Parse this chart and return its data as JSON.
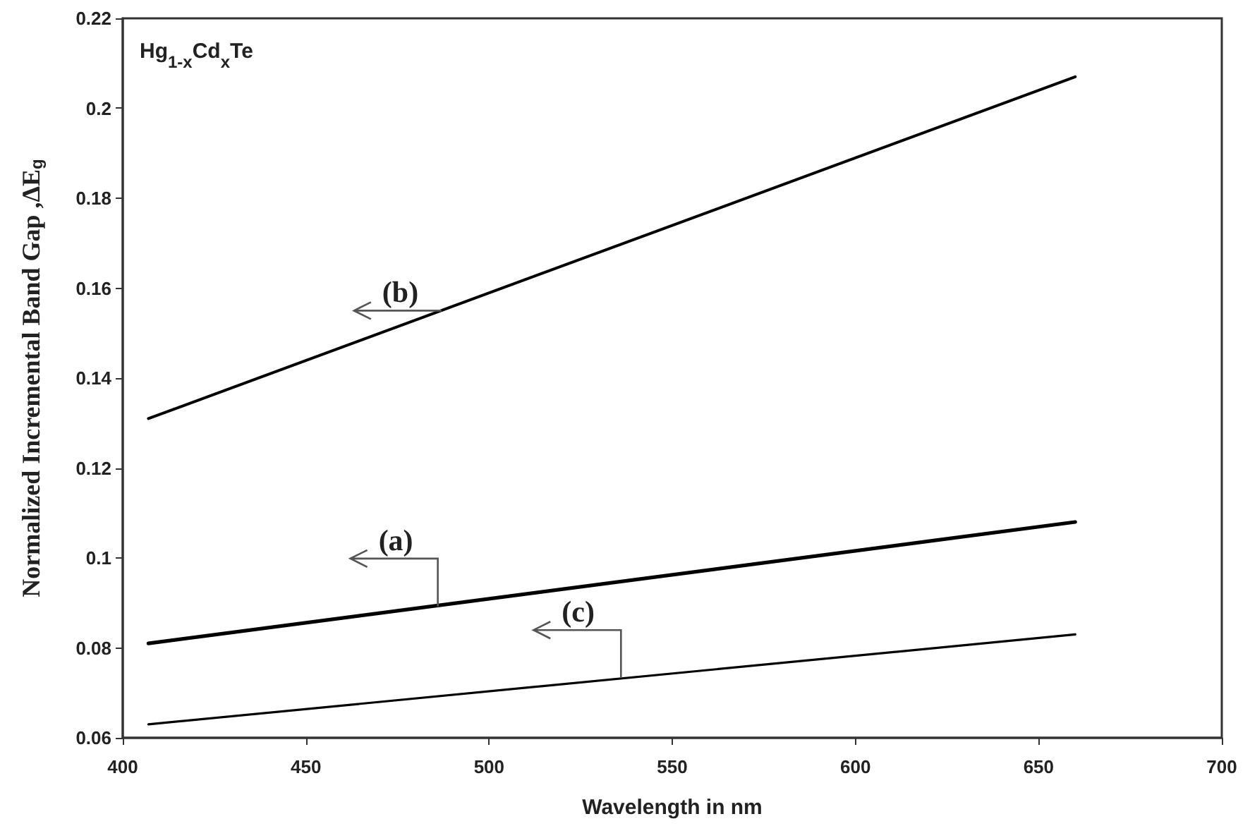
{
  "chart_data": {
    "type": "line",
    "xlabel": "Wavelength in nm",
    "ylabel": "Normalized Incremental Band Gap ,ΔE$_{g}$",
    "xlim": [
      400,
      700
    ],
    "xticks": [
      400,
      450,
      500,
      550,
      600,
      650,
      700
    ],
    "ylim": [
      0.06,
      0.22
    ],
    "yticks": [
      0.06,
      0.08,
      0.1,
      0.12,
      0.14,
      0.16,
      0.18,
      0.2,
      0.22
    ],
    "x": [
      407,
      660
    ],
    "grid": false,
    "marker": "none",
    "line_style": "solid",
    "series": [
      {
        "color": "#000000",
        "values": [
          0.081,
          0.108
        ]
      },
      {
        "color": "#000000",
        "values": [
          0.131,
          0.207
        ]
      },
      {
        "color": "#000000",
        "values": [
          0.063,
          0.083
        ]
      }
    ],
    "annotations": [
      "Hg$_{1-x}$Cd$_{x}$Te",
      {
        "text": "(a)",
        "x": 486,
        "y": 0.0892
      },
      {
        "text": "(b)",
        "x": 487,
        "y": 0.155
      },
      {
        "text": "(c)",
        "x": 536,
        "y": 0.0733
      }
    ]
  }
}
